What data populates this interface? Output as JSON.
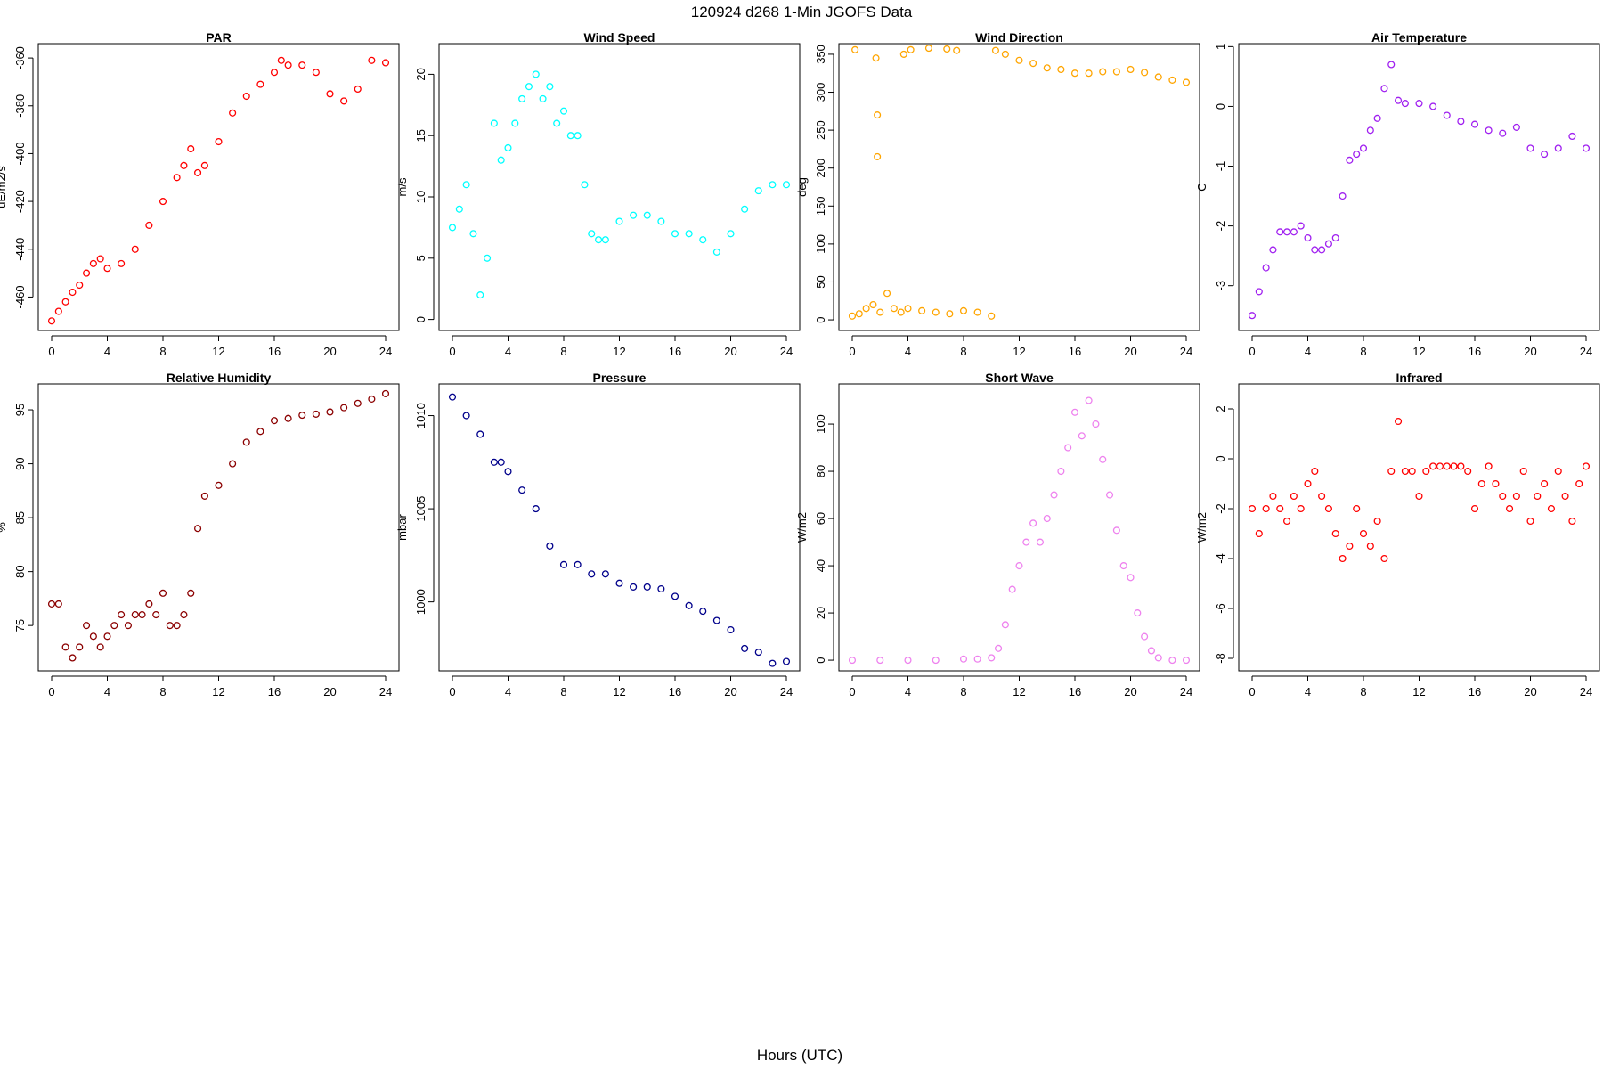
{
  "figure": {
    "title": "120924   d268   1-Min  JGOFS Data",
    "xlabel": "Hours (UTC)"
  },
  "chart_data": [
    {
      "type": "scatter",
      "title": "PAR",
      "ylabel": "uE/m2/s",
      "color": "#ff0000",
      "xlim": [
        -0.96,
        24.96
      ],
      "ylim": [
        -474,
        -354
      ],
      "xticks": [
        0,
        4,
        8,
        12,
        16,
        20,
        24
      ],
      "yticks": [
        -460,
        -440,
        -420,
        -400,
        -380,
        -360
      ],
      "x": [
        0,
        0.5,
        1,
        1.5,
        2,
        2.5,
        3,
        3.5,
        4,
        5,
        6,
        7,
        8,
        9,
        9.5,
        10,
        10.5,
        11,
        12,
        13,
        14,
        15,
        16,
        16.5,
        17,
        18,
        19,
        20,
        21,
        22,
        23,
        24
      ],
      "y": [
        -470,
        -466,
        -462,
        -458,
        -455,
        -450,
        -446,
        -444,
        -448,
        -446,
        -440,
        -430,
        -420,
        -410,
        -405,
        -398,
        -408,
        -405,
        -395,
        -383,
        -376,
        -371,
        -366,
        -361,
        -363,
        -363,
        -366,
        -375,
        -378,
        -373,
        -361,
        -362
      ]
    },
    {
      "type": "scatter",
      "title": "Wind Speed",
      "ylabel": "m/s",
      "color": "#00ffff",
      "xlim": [
        -0.96,
        24.96
      ],
      "ylim": [
        -0.9,
        22.5
      ],
      "xticks": [
        0,
        4,
        8,
        12,
        16,
        20,
        24
      ],
      "yticks": [
        0,
        5,
        10,
        15,
        20
      ],
      "x": [
        0,
        0.5,
        1,
        1.5,
        2,
        2.5,
        3,
        3.5,
        4,
        4.5,
        5,
        5.5,
        6,
        6.5,
        7,
        7.5,
        8,
        8.5,
        9,
        9.5,
        10,
        10.5,
        11,
        12,
        13,
        14,
        15,
        16,
        17,
        18,
        19,
        20,
        21,
        22,
        23,
        24
      ],
      "y": [
        7.5,
        9,
        11,
        7,
        2,
        5,
        16,
        13,
        14,
        16,
        18,
        19,
        20,
        18,
        19,
        16,
        17,
        15,
        15,
        11,
        7,
        6.5,
        6.5,
        8,
        8.5,
        8.5,
        8,
        7,
        7,
        6.5,
        5.5,
        7,
        9,
        10.5,
        11,
        11
      ]
    },
    {
      "type": "scatter",
      "title": "Wind Direction",
      "ylabel": "deg",
      "color": "#ffa500",
      "xlim": [
        -0.96,
        24.96
      ],
      "ylim": [
        -14,
        364
      ],
      "xticks": [
        0,
        4,
        8,
        12,
        16,
        20,
        24
      ],
      "yticks": [
        0,
        50,
        100,
        150,
        200,
        250,
        300,
        350
      ],
      "x": [
        0,
        0.5,
        1,
        1.5,
        2,
        2.5,
        3,
        3.5,
        4,
        5,
        6,
        7,
        8,
        9,
        10,
        0.2,
        1.7,
        1.8,
        1.8,
        3.7,
        4.2,
        5.5,
        6.8,
        7.5,
        10.3,
        11,
        12,
        13,
        14,
        15,
        16,
        17,
        18,
        19,
        20,
        21,
        22,
        23,
        24
      ],
      "y": [
        5,
        8,
        15,
        20,
        10,
        35,
        15,
        10,
        15,
        12,
        10,
        8,
        12,
        10,
        5,
        356,
        345,
        270,
        215,
        350,
        356,
        358,
        357,
        355,
        355,
        350,
        342,
        338,
        332,
        330,
        325,
        325,
        327,
        327,
        330,
        326,
        320,
        316,
        313
      ]
    },
    {
      "type": "scatter",
      "title": "Air Temperature",
      "ylabel": "C",
      "color": "#a020f0",
      "xlim": [
        -0.96,
        24.96
      ],
      "ylim": [
        -3.75,
        1.05
      ],
      "xticks": [
        0,
        4,
        8,
        12,
        16,
        20,
        24
      ],
      "yticks": [
        -3,
        -2,
        -1,
        0,
        1
      ],
      "x": [
        0,
        0.5,
        1,
        1.5,
        2,
        2.5,
        3,
        3.5,
        4,
        4.5,
        5,
        5.5,
        6,
        6.5,
        7,
        7.5,
        8,
        8.5,
        9,
        9.5,
        10,
        10.5,
        11,
        12,
        13,
        14,
        15,
        16,
        17,
        18,
        19,
        20,
        21,
        22,
        23,
        24
      ],
      "y": [
        -3.5,
        -3.1,
        -2.7,
        -2.4,
        -2.1,
        -2.1,
        -2.1,
        -2.0,
        -2.2,
        -2.4,
        -2.4,
        -2.3,
        -2.2,
        -1.5,
        -0.9,
        -0.8,
        -0.7,
        -0.4,
        -0.2,
        0.3,
        0.7,
        0.1,
        0.05,
        0.05,
        0.0,
        -0.15,
        -0.25,
        -0.3,
        -0.4,
        -0.45,
        -0.35,
        -0.7,
        -0.8,
        -0.7,
        -0.5,
        -0.7
      ]
    },
    {
      "type": "scatter",
      "title": "Relative Humidity",
      "ylabel": "%",
      "color": "#8b0000",
      "xlim": [
        -0.96,
        24.96
      ],
      "ylim": [
        70.8,
        97.4
      ],
      "xticks": [
        0,
        4,
        8,
        12,
        16,
        20,
        24
      ],
      "yticks": [
        75,
        80,
        85,
        90,
        95
      ],
      "x": [
        0,
        0.5,
        1,
        1.5,
        2,
        2.5,
        3,
        3.5,
        4,
        4.5,
        5,
        5.5,
        6,
        6.5,
        7,
        7.5,
        8,
        8.5,
        9,
        9.5,
        10,
        10.5,
        11,
        12,
        13,
        14,
        15,
        16,
        17,
        18,
        19,
        20,
        21,
        22,
        23,
        24
      ],
      "y": [
        77,
        77,
        73,
        72,
        73,
        75,
        74,
        73,
        74,
        75,
        76,
        75,
        76,
        76,
        77,
        76,
        78,
        75,
        75,
        76,
        78,
        84,
        87,
        88,
        90,
        92,
        93,
        94,
        94.2,
        94.5,
        94.6,
        94.8,
        95.2,
        95.6,
        96,
        96.5
      ]
    },
    {
      "type": "scatter",
      "title": "Pressure",
      "ylabel": "mbar",
      "color": "#00008b",
      "xlim": [
        -0.96,
        24.96
      ],
      "ylim": [
        996.3,
        1011.7
      ],
      "xticks": [
        0,
        4,
        8,
        12,
        16,
        20,
        24
      ],
      "yticks": [
        1000,
        1005,
        1010
      ],
      "x": [
        0,
        1,
        2,
        3,
        3.5,
        4,
        5,
        6,
        7,
        8,
        9,
        10,
        11,
        12,
        13,
        14,
        15,
        16,
        17,
        18,
        19,
        20,
        21,
        22,
        23,
        24
      ],
      "y": [
        1011,
        1010,
        1009,
        1007.5,
        1007.5,
        1007,
        1006,
        1005,
        1003,
        1002,
        1002,
        1001.5,
        1001.5,
        1001,
        1000.8,
        1000.8,
        1000.7,
        1000.3,
        999.8,
        999.5,
        999,
        998.5,
        997.5,
        997.3,
        996.7,
        996.8
      ]
    },
    {
      "type": "scatter",
      "title": "Short Wave",
      "ylabel": "W/m2",
      "color": "#ee82ee",
      "xlim": [
        -0.96,
        24.96
      ],
      "ylim": [
        -4.5,
        117
      ],
      "xticks": [
        0,
        4,
        8,
        12,
        16,
        20,
        24
      ],
      "yticks": [
        0,
        20,
        40,
        60,
        80,
        100
      ],
      "x": [
        0,
        2,
        4,
        6,
        8,
        9,
        10,
        10.5,
        11,
        11.5,
        12,
        12.5,
        13,
        13.5,
        14,
        14.5,
        15,
        15.5,
        16,
        16.5,
        17,
        17.5,
        18,
        18.5,
        19,
        19.5,
        20,
        20.5,
        21,
        21.5,
        22,
        23,
        24
      ],
      "y": [
        0,
        0,
        0,
        0,
        0.5,
        0.5,
        1,
        5,
        15,
        30,
        40,
        50,
        58,
        50,
        60,
        70,
        80,
        90,
        105,
        95,
        110,
        100,
        85,
        70,
        55,
        40,
        35,
        20,
        10,
        4,
        1,
        0,
        0
      ]
    },
    {
      "type": "scatter",
      "title": "Infrared",
      "ylabel": "W/m2",
      "color": "#ff0000",
      "xlim": [
        -0.96,
        24.96
      ],
      "ylim": [
        -8.5,
        3.0
      ],
      "xticks": [
        0,
        4,
        8,
        12,
        16,
        20,
        24
      ],
      "yticks": [
        -8,
        -6,
        -4,
        -2,
        0,
        2
      ],
      "x": [
        0,
        0.5,
        1,
        1.5,
        2,
        2.5,
        3,
        3.5,
        4,
        4.5,
        5,
        5.5,
        6,
        6.5,
        7,
        7.5,
        8,
        8.5,
        9,
        9.5,
        10,
        10.5,
        11,
        11.5,
        12,
        12.5,
        13,
        13.5,
        14,
        14.5,
        15,
        15.5,
        16,
        16.5,
        17,
        17.5,
        18,
        18.5,
        19,
        19.5,
        20,
        20.5,
        21,
        21.5,
        22,
        22.5,
        23,
        23.5,
        24
      ],
      "y": [
        -2,
        -3,
        -2,
        -1.5,
        -2,
        -2.5,
        -1.5,
        -2,
        -1,
        -0.5,
        -1.5,
        -2,
        -3,
        -4,
        -3.5,
        -2,
        -3,
        -3.5,
        -2.5,
        -4,
        -0.5,
        1.5,
        -0.5,
        -0.5,
        -1.5,
        -0.5,
        -0.3,
        -0.3,
        -0.3,
        -0.3,
        -0.3,
        -0.5,
        -2,
        -1,
        -0.3,
        -1,
        -1.5,
        -2,
        -1.5,
        -0.5,
        -2.5,
        -1.5,
        -1,
        -2,
        -0.5,
        -1.5,
        -2.5,
        -1,
        -0.3
      ]
    }
  ]
}
